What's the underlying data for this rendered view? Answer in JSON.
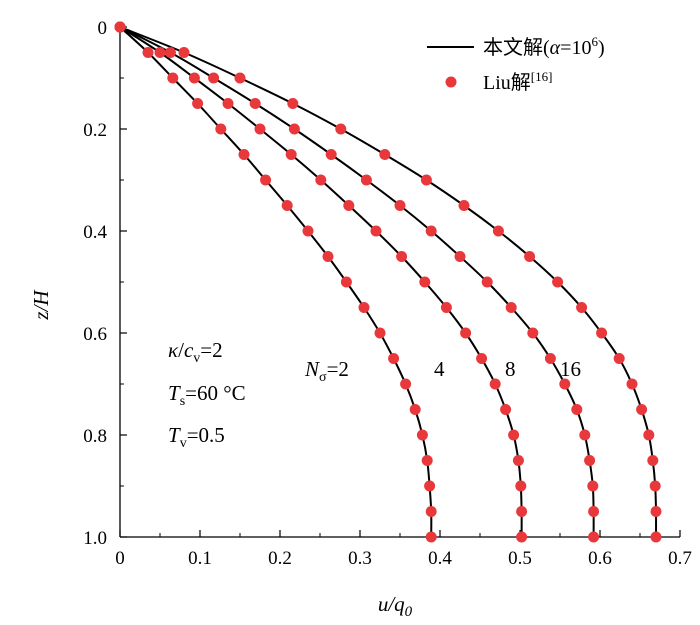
{
  "chart_data": {
    "type": "line",
    "xlabel": "u/q",
    "xlabel_sub": "0",
    "ylabel": "z/H",
    "xlim": [
      0,
      0.7
    ],
    "ylim": [
      1.0,
      0
    ],
    "y_inverted": true,
    "x_ticks": [
      "0",
      "0.1",
      "0.2",
      "0.3",
      "0.4",
      "0.5",
      "0.6",
      "0.7"
    ],
    "y_ticks": [
      "0",
      "0.2",
      "0.4",
      "0.6",
      "0.8",
      "1.0"
    ],
    "grid": false,
    "legend_position": "top-right",
    "legend": [
      {
        "text": "本文解(",
        "italic": "α",
        "tail": "=10",
        "sup": "6",
        "close": ")",
        "marker": "line"
      },
      {
        "text": "Liu解",
        "sup": "[16]",
        "marker": "dot"
      }
    ],
    "annotations": {
      "kappa": {
        "sym": "κ",
        "slash": "/",
        "c": "c",
        "sub": "v",
        "value": "=2"
      },
      "ts": {
        "sym": "T",
        "sub": "s",
        "value": "=60 °C"
      },
      "tv": {
        "sym": "T",
        "sub": "v",
        "value": "=0.5"
      },
      "nsigma": {
        "sym": "N",
        "sub": "σ",
        "value": "=2"
      },
      "curve_labels": [
        "4",
        "8",
        "16"
      ]
    },
    "colors": {
      "line": "#000000",
      "marker": "#e8383b"
    },
    "series": [
      {
        "n_sigma": 2,
        "analytical": [
          [
            0,
            0
          ],
          [
            0.035,
            0.05
          ],
          [
            0.066,
            0.1
          ],
          [
            0.097,
            0.15
          ],
          [
            0.126,
            0.2
          ],
          [
            0.155,
            0.25
          ],
          [
            0.182,
            0.3
          ],
          [
            0.209,
            0.35
          ],
          [
            0.235,
            0.4
          ],
          [
            0.26,
            0.45
          ],
          [
            0.283,
            0.5
          ],
          [
            0.305,
            0.55
          ],
          [
            0.325,
            0.6
          ],
          [
            0.342,
            0.65
          ],
          [
            0.357,
            0.7
          ],
          [
            0.369,
            0.75
          ],
          [
            0.378,
            0.8
          ],
          [
            0.384,
            0.85
          ],
          [
            0.387,
            0.9
          ],
          [
            0.389,
            0.95
          ],
          [
            0.389,
            1.0
          ]
        ],
        "points": [
          [
            0,
            0
          ],
          [
            0.035,
            0.05
          ],
          [
            0.066,
            0.1
          ],
          [
            0.097,
            0.15
          ],
          [
            0.126,
            0.2
          ],
          [
            0.155,
            0.25
          ],
          [
            0.182,
            0.3
          ],
          [
            0.209,
            0.35
          ],
          [
            0.235,
            0.4
          ],
          [
            0.26,
            0.45
          ],
          [
            0.283,
            0.5
          ],
          [
            0.305,
            0.55
          ],
          [
            0.325,
            0.6
          ],
          [
            0.342,
            0.65
          ],
          [
            0.357,
            0.7
          ],
          [
            0.369,
            0.75
          ],
          [
            0.378,
            0.8
          ],
          [
            0.384,
            0.85
          ],
          [
            0.387,
            0.9
          ],
          [
            0.389,
            0.95
          ],
          [
            0.389,
            1.0
          ]
        ]
      },
      {
        "n_sigma": 4,
        "analytical": [
          [
            0,
            0
          ],
          [
            0.05,
            0.05
          ],
          [
            0.093,
            0.1
          ],
          [
            0.135,
            0.15
          ],
          [
            0.175,
            0.2
          ],
          [
            0.214,
            0.25
          ],
          [
            0.251,
            0.3
          ],
          [
            0.286,
            0.35
          ],
          [
            0.32,
            0.4
          ],
          [
            0.352,
            0.45
          ],
          [
            0.381,
            0.5
          ],
          [
            0.408,
            0.55
          ],
          [
            0.432,
            0.6
          ],
          [
            0.452,
            0.65
          ],
          [
            0.469,
            0.7
          ],
          [
            0.482,
            0.75
          ],
          [
            0.492,
            0.8
          ],
          [
            0.498,
            0.85
          ],
          [
            0.501,
            0.9
          ],
          [
            0.502,
            0.95
          ],
          [
            0.502,
            1.0
          ]
        ],
        "points": [
          [
            0,
            0
          ],
          [
            0.05,
            0.05
          ],
          [
            0.093,
            0.1
          ],
          [
            0.135,
            0.15
          ],
          [
            0.175,
            0.2
          ],
          [
            0.214,
            0.25
          ],
          [
            0.251,
            0.3
          ],
          [
            0.286,
            0.35
          ],
          [
            0.32,
            0.4
          ],
          [
            0.352,
            0.45
          ],
          [
            0.381,
            0.5
          ],
          [
            0.408,
            0.55
          ],
          [
            0.432,
            0.6
          ],
          [
            0.452,
            0.65
          ],
          [
            0.469,
            0.7
          ],
          [
            0.482,
            0.75
          ],
          [
            0.492,
            0.8
          ],
          [
            0.498,
            0.85
          ],
          [
            0.501,
            0.9
          ],
          [
            0.502,
            0.95
          ],
          [
            0.502,
            1.0
          ]
        ]
      },
      {
        "n_sigma": 8,
        "analytical": [
          [
            0,
            0
          ],
          [
            0.063,
            0.05
          ],
          [
            0.117,
            0.1
          ],
          [
            0.169,
            0.15
          ],
          [
            0.218,
            0.2
          ],
          [
            0.264,
            0.25
          ],
          [
            0.308,
            0.3
          ],
          [
            0.35,
            0.35
          ],
          [
            0.389,
            0.4
          ],
          [
            0.425,
            0.45
          ],
          [
            0.459,
            0.5
          ],
          [
            0.489,
            0.55
          ],
          [
            0.516,
            0.6
          ],
          [
            0.538,
            0.65
          ],
          [
            0.556,
            0.7
          ],
          [
            0.571,
            0.75
          ],
          [
            0.581,
            0.8
          ],
          [
            0.587,
            0.85
          ],
          [
            0.591,
            0.9
          ],
          [
            0.592,
            0.95
          ],
          [
            0.592,
            1.0
          ]
        ],
        "points": [
          [
            0,
            0
          ],
          [
            0.063,
            0.05
          ],
          [
            0.117,
            0.1
          ],
          [
            0.169,
            0.15
          ],
          [
            0.218,
            0.2
          ],
          [
            0.264,
            0.25
          ],
          [
            0.308,
            0.3
          ],
          [
            0.35,
            0.35
          ],
          [
            0.389,
            0.4
          ],
          [
            0.425,
            0.45
          ],
          [
            0.459,
            0.5
          ],
          [
            0.489,
            0.55
          ],
          [
            0.516,
            0.6
          ],
          [
            0.538,
            0.65
          ],
          [
            0.556,
            0.7
          ],
          [
            0.571,
            0.75
          ],
          [
            0.581,
            0.8
          ],
          [
            0.587,
            0.85
          ],
          [
            0.591,
            0.9
          ],
          [
            0.592,
            0.95
          ],
          [
            0.592,
            1.0
          ]
        ]
      },
      {
        "n_sigma": 16,
        "analytical": [
          [
            0,
            0
          ],
          [
            0.08,
            0.05
          ],
          [
            0.15,
            0.1
          ],
          [
            0.216,
            0.15
          ],
          [
            0.276,
            0.2
          ],
          [
            0.331,
            0.25
          ],
          [
            0.383,
            0.3
          ],
          [
            0.43,
            0.35
          ],
          [
            0.473,
            0.4
          ],
          [
            0.512,
            0.45
          ],
          [
            0.547,
            0.5
          ],
          [
            0.577,
            0.55
          ],
          [
            0.602,
            0.6
          ],
          [
            0.624,
            0.65
          ],
          [
            0.64,
            0.7
          ],
          [
            0.652,
            0.75
          ],
          [
            0.661,
            0.8
          ],
          [
            0.666,
            0.85
          ],
          [
            0.669,
            0.9
          ],
          [
            0.67,
            0.95
          ],
          [
            0.67,
            1.0
          ]
        ],
        "points": [
          [
            0,
            0
          ],
          [
            0.08,
            0.05
          ],
          [
            0.15,
            0.1
          ],
          [
            0.216,
            0.15
          ],
          [
            0.276,
            0.2
          ],
          [
            0.331,
            0.25
          ],
          [
            0.383,
            0.3
          ],
          [
            0.43,
            0.35
          ],
          [
            0.473,
            0.4
          ],
          [
            0.512,
            0.45
          ],
          [
            0.547,
            0.5
          ],
          [
            0.577,
            0.55
          ],
          [
            0.602,
            0.6
          ],
          [
            0.624,
            0.65
          ],
          [
            0.64,
            0.7
          ],
          [
            0.652,
            0.75
          ],
          [
            0.661,
            0.8
          ],
          [
            0.666,
            0.85
          ],
          [
            0.669,
            0.9
          ],
          [
            0.67,
            0.95
          ],
          [
            0.67,
            1.0
          ]
        ]
      }
    ]
  }
}
